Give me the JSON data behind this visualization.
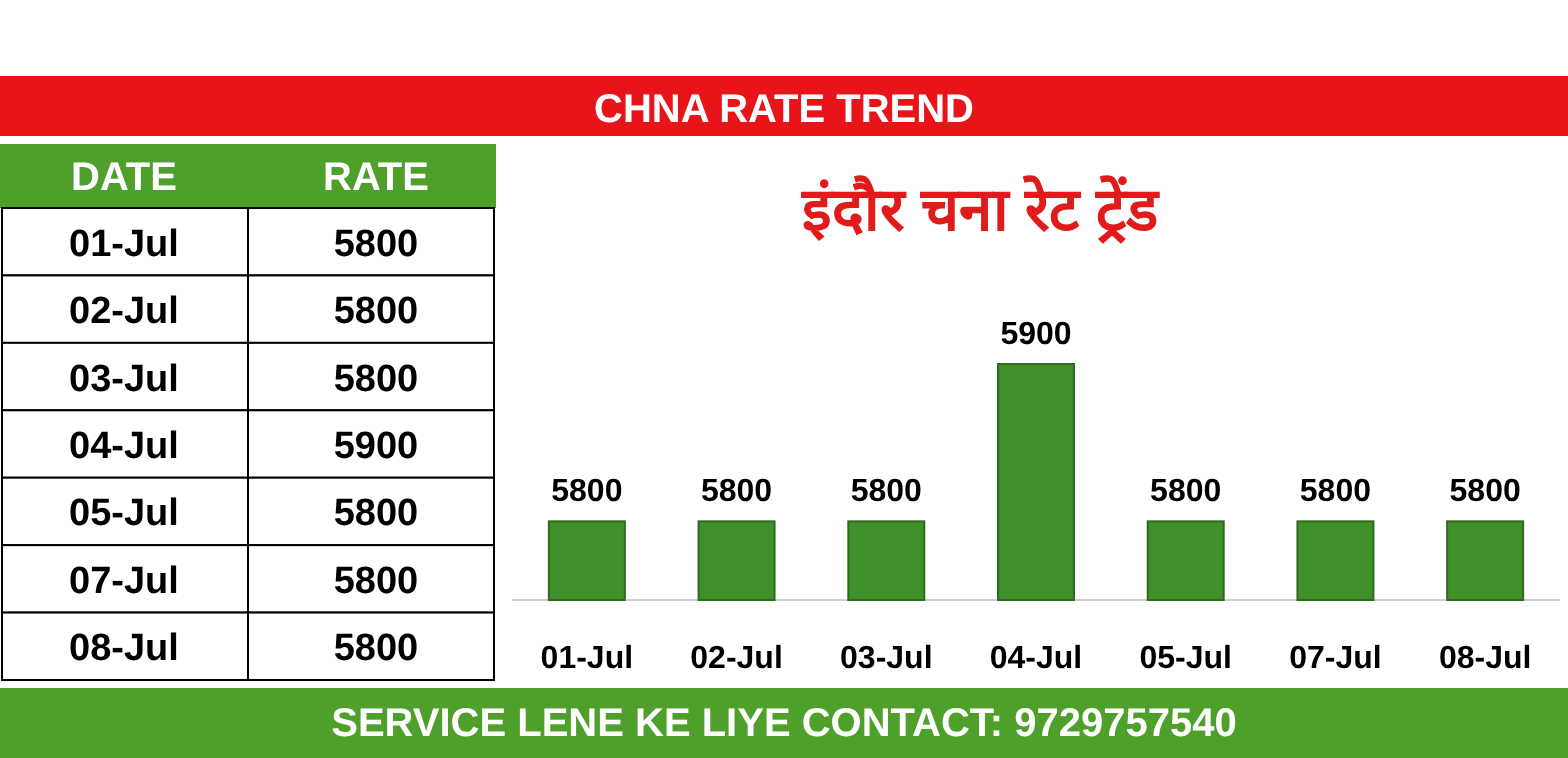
{
  "chart_data": [
    {
      "type": "other",
      "annotations": [
        "DATE",
        "RATE"
      ],
      "categories": [
        "01-Jul",
        "02-Jul",
        "03-Jul",
        "04-Jul",
        "05-Jul",
        "07-Jul",
        "08-Jul"
      ],
      "values": [
        5800,
        5800,
        5800,
        5900,
        5800,
        5800,
        5800
      ],
      "data_labels": true
    },
    {
      "type": "bar",
      "title": "CHNA RATE TREND",
      "subtitle": "इंदौर चना रेट ट्रेंड",
      "categories": [
        "01-Jul",
        "02-Jul",
        "03-Jul",
        "04-Jul",
        "05-Jul",
        "07-Jul",
        "08-Jul"
      ],
      "values": [
        5800,
        5800,
        5800,
        5900,
        5800,
        5800,
        5800
      ],
      "color": "#3f8f2a",
      "data_labels": true,
      "ylim": [
        5750,
        5900
      ],
      "annotations": [
        "SERVICE LENE KE LIYE CONTACT: 9729757540"
      ]
    }
  ]
}
